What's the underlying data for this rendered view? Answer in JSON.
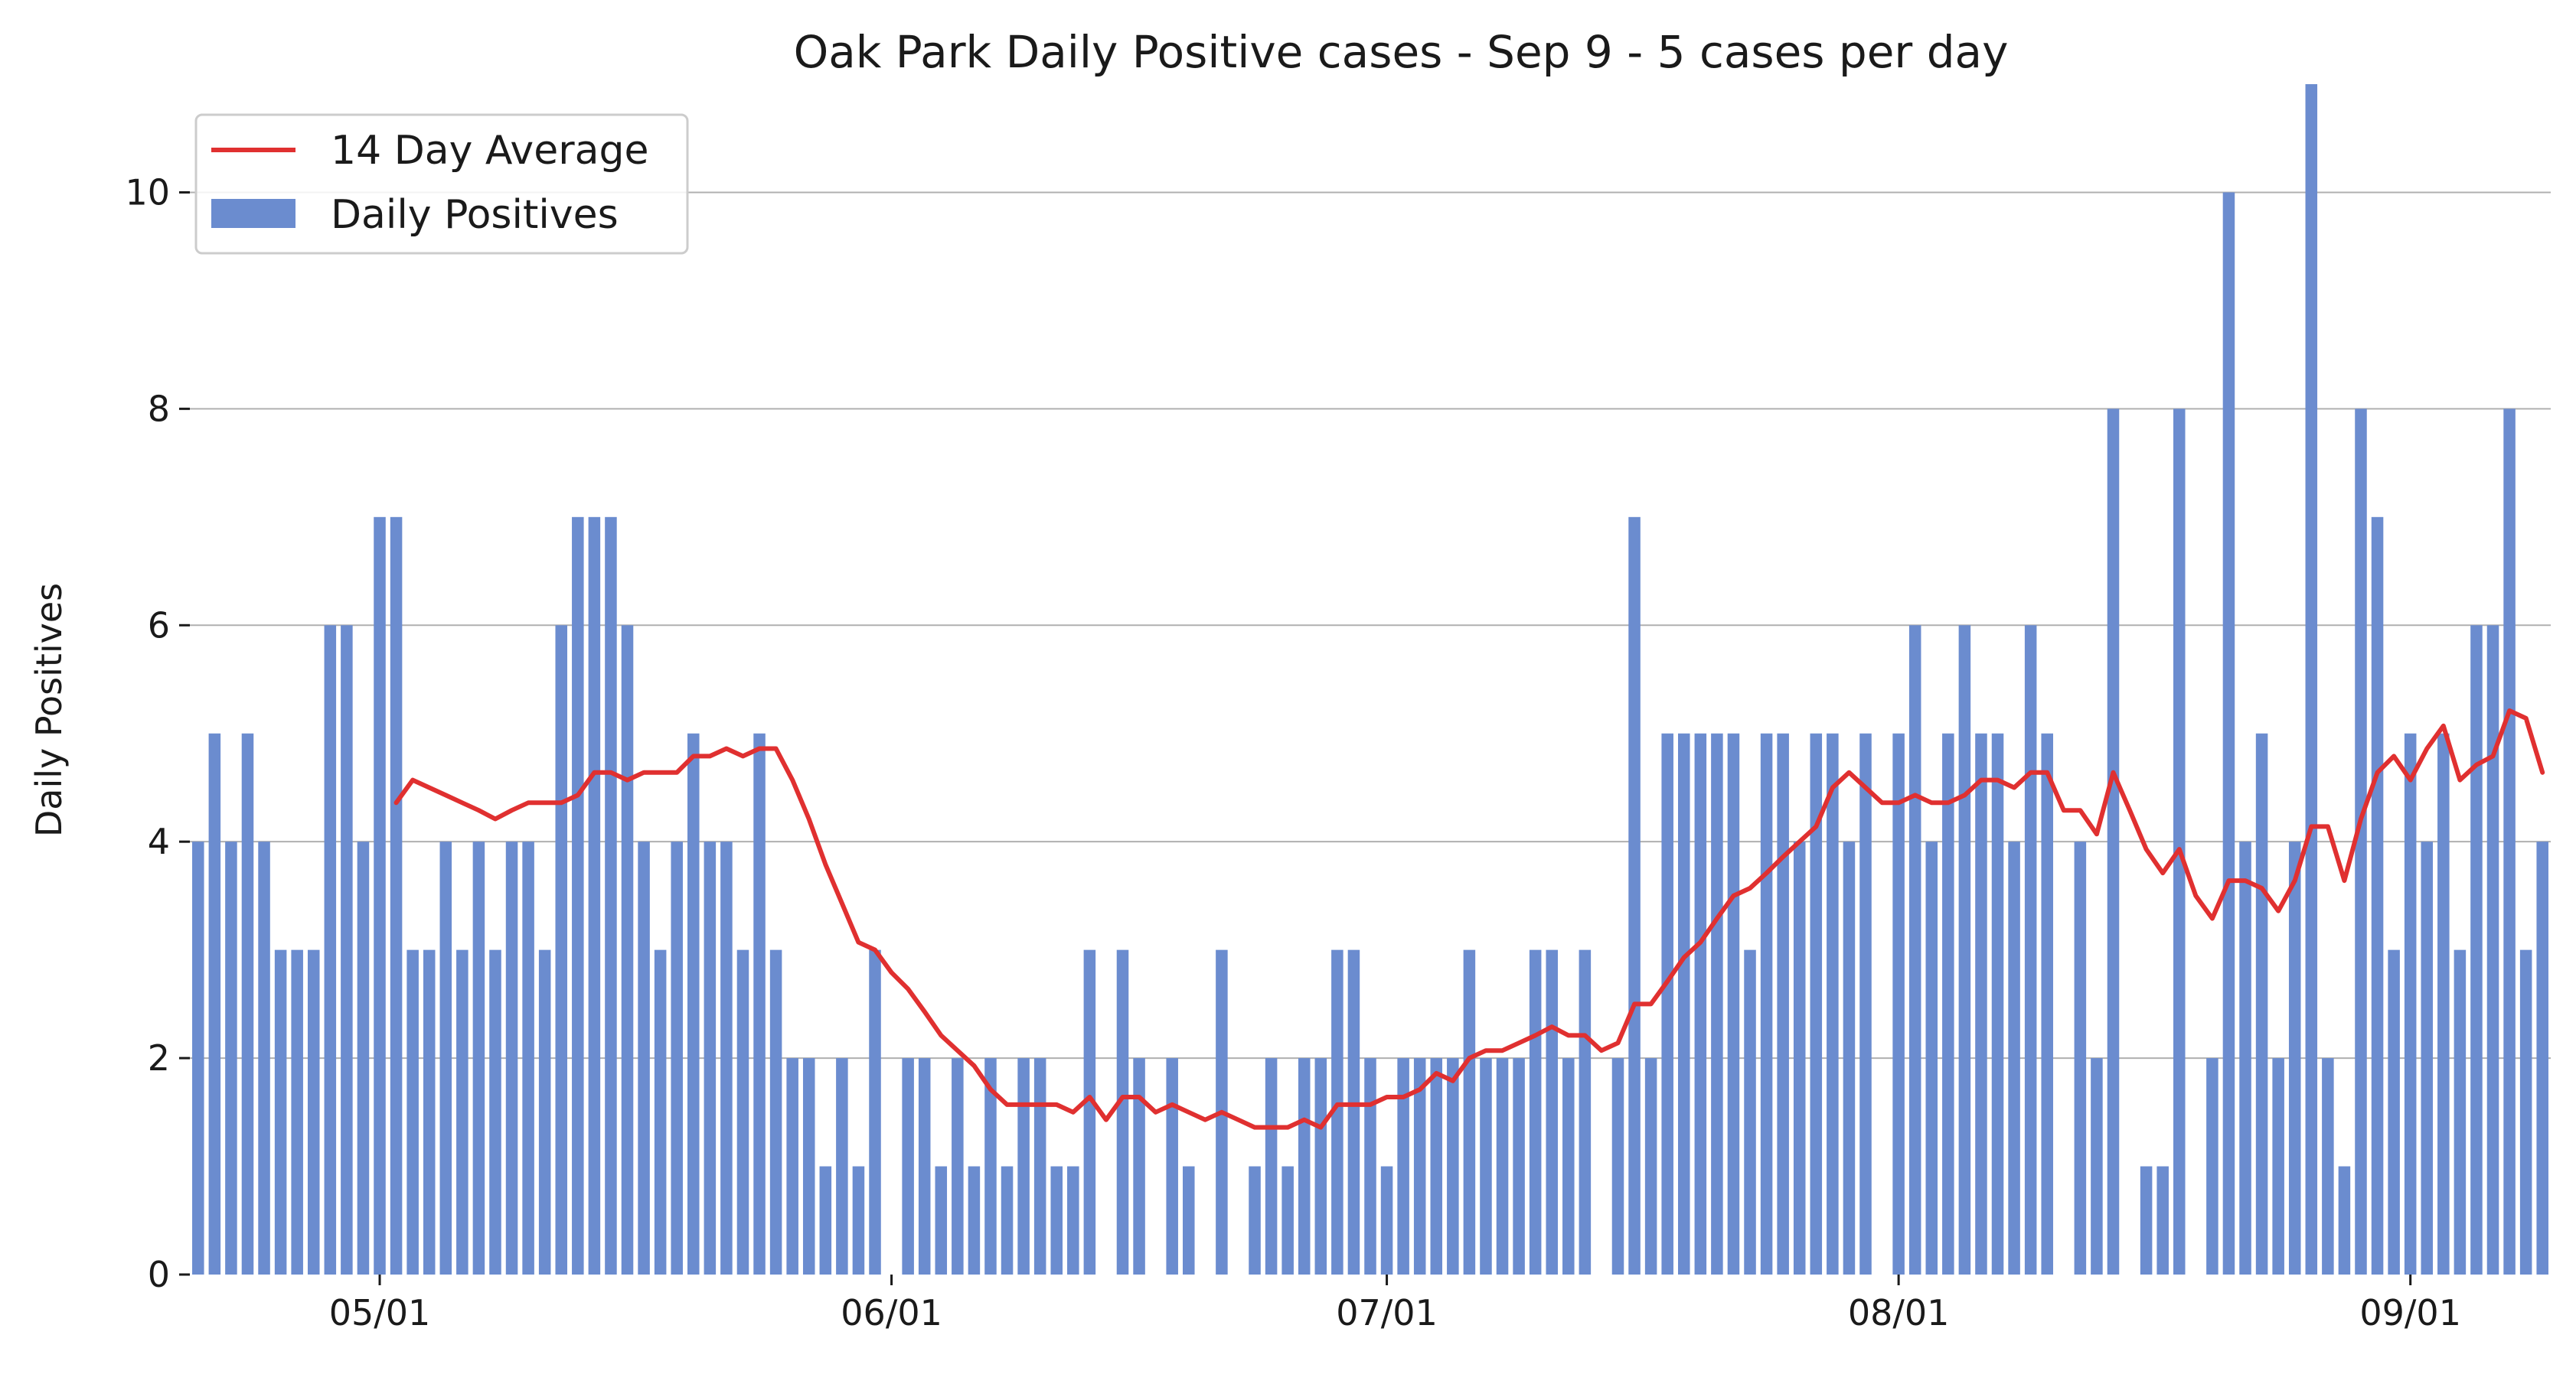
{
  "chart_data": {
    "type": "bar",
    "title": "Oak Park Daily Positive cases - Sep 9 - 5 cases per day",
    "ylabel": "Daily Positives",
    "xlabel": "",
    "ylim": [
      0,
      11
    ],
    "yticks": [
      0,
      2,
      4,
      6,
      8,
      10
    ],
    "xticks": [
      {
        "date": "2020-05-01",
        "label": "05/01"
      },
      {
        "date": "2020-06-01",
        "label": "06/01"
      },
      {
        "date": "2020-07-01",
        "label": "07/01"
      },
      {
        "date": "2020-08-01",
        "label": "08/01"
      },
      {
        "date": "2020-09-01",
        "label": "09/01"
      }
    ],
    "grid": "horizontal",
    "legend_position": "top-left",
    "x_start": "2020-04-20",
    "x_end": "2020-09-09",
    "series": [
      {
        "name": "Daily Positives",
        "type": "bar",
        "color": "#6b8ccf",
        "values": [
          4,
          5,
          4,
          5,
          4,
          3,
          3,
          3,
          6,
          6,
          4,
          7,
          7,
          3,
          3,
          4,
          3,
          4,
          3,
          4,
          4,
          3,
          6,
          7,
          7,
          7,
          6,
          4,
          3,
          4,
          5,
          4,
          4,
          3,
          5,
          3,
          2,
          2,
          1,
          2,
          1,
          3,
          0,
          2,
          2,
          1,
          2,
          1,
          2,
          1,
          2,
          2,
          1,
          1,
          3,
          0,
          3,
          2,
          0,
          2,
          1,
          0,
          3,
          0,
          1,
          2,
          1,
          2,
          2,
          3,
          3,
          2,
          1,
          2,
          2,
          2,
          2,
          3,
          2,
          2,
          2,
          3,
          3,
          2,
          3,
          0,
          2,
          7,
          2,
          5,
          5,
          5,
          5,
          5,
          3,
          5,
          5,
          4,
          5,
          5,
          4,
          5,
          0,
          5,
          6,
          4,
          5,
          6,
          5,
          5,
          4,
          6,
          5,
          0,
          4,
          2,
          8,
          0,
          1,
          1,
          8,
          0,
          2,
          10,
          4,
          5,
          2,
          4,
          11,
          2,
          1,
          8,
          7,
          3,
          5,
          4,
          5,
          3,
          6,
          6,
          8,
          3,
          4
        ]
      },
      {
        "name": "14 Day Average",
        "type": "line",
        "color": "#e03030",
        "values": [
          null,
          null,
          null,
          null,
          null,
          null,
          null,
          null,
          null,
          null,
          null,
          null,
          4.36,
          4.57,
          4.5,
          4.43,
          4.36,
          4.29,
          4.21,
          4.29,
          4.36,
          4.36,
          4.36,
          4.43,
          4.64,
          4.64,
          4.57,
          4.64,
          4.64,
          4.64,
          4.79,
          4.79,
          4.86,
          4.79,
          4.86,
          4.86,
          4.57,
          4.21,
          3.79,
          3.43,
          3.07,
          3.0,
          2.79,
          2.64,
          2.43,
          2.21,
          2.07,
          1.93,
          1.71,
          1.57,
          1.57,
          1.57,
          1.57,
          1.5,
          1.64,
          1.43,
          1.64,
          1.64,
          1.5,
          1.57,
          1.5,
          1.43,
          1.5,
          1.43,
          1.36,
          1.36,
          1.36,
          1.43,
          1.36,
          1.57,
          1.57,
          1.57,
          1.64,
          1.64,
          1.71,
          1.86,
          1.79,
          2.0,
          2.07,
          2.07,
          2.14,
          2.21,
          2.29,
          2.21,
          2.21,
          2.07,
          2.14,
          2.5,
          2.5,
          2.71,
          2.93,
          3.07,
          3.29,
          3.5,
          3.57,
          3.71,
          3.86,
          4.0,
          4.14,
          4.5,
          4.64,
          4.5,
          4.36,
          4.36,
          4.43,
          4.36,
          4.36,
          4.43,
          4.57,
          4.57,
          4.5,
          4.64,
          4.64,
          4.29,
          4.29,
          4.07,
          4.64,
          4.29,
          3.93,
          3.71,
          3.93,
          3.5,
          3.29,
          3.64,
          3.64,
          3.57,
          3.36,
          3.64,
          4.14,
          4.14,
          3.64,
          4.21,
          4.64,
          4.79,
          4.57,
          4.86,
          5.07,
          4.57,
          4.71,
          4.79,
          5.21,
          5.14,
          4.64
        ]
      }
    ]
  }
}
